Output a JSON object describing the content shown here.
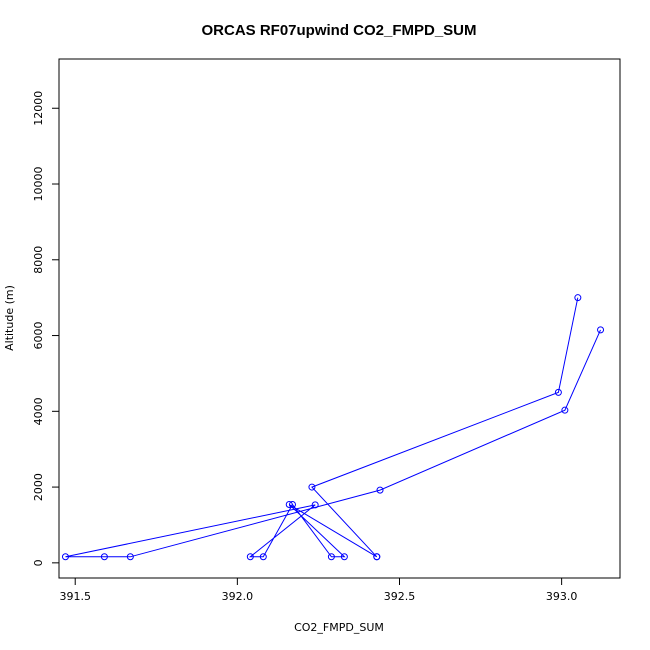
{
  "chart_data": {
    "type": "line",
    "title": "ORCAS RF07upwind CO2_FMPD_SUM",
    "xlabel": "CO2_FMPD_SUM",
    "ylabel": "Altitude (m)",
    "xlim": [
      391.45,
      393.18
    ],
    "ylim": [
      -400,
      13300
    ],
    "x_ticks": [
      391.5,
      392.0,
      392.5,
      393.0
    ],
    "x_tick_labels": [
      "391.5",
      "392.0",
      "392.5",
      "393.0"
    ],
    "y_ticks": [
      0,
      2000,
      4000,
      6000,
      8000,
      10000,
      12000
    ],
    "y_tick_labels": [
      "0",
      "2000",
      "4000",
      "6000",
      "8000",
      "10000",
      "12000"
    ],
    "grid": false,
    "series": [
      {
        "color": "#0000ff",
        "points": [
          [
            393.05,
            7000
          ],
          [
            392.99,
            4500
          ],
          [
            392.23,
            2000
          ],
          [
            392.43,
            160
          ],
          [
            392.43,
            160
          ],
          [
            392.16,
            1540
          ],
          [
            392.33,
            160
          ],
          [
            392.29,
            160
          ],
          [
            392.17,
            1540
          ],
          [
            392.08,
            160
          ],
          [
            392.04,
            160
          ],
          [
            392.24,
            1530
          ],
          [
            391.47,
            160
          ],
          [
            391.59,
            160
          ],
          [
            391.67,
            160
          ],
          [
            392.44,
            1920
          ],
          [
            393.01,
            4030
          ],
          [
            393.12,
            6150
          ]
        ]
      }
    ]
  }
}
